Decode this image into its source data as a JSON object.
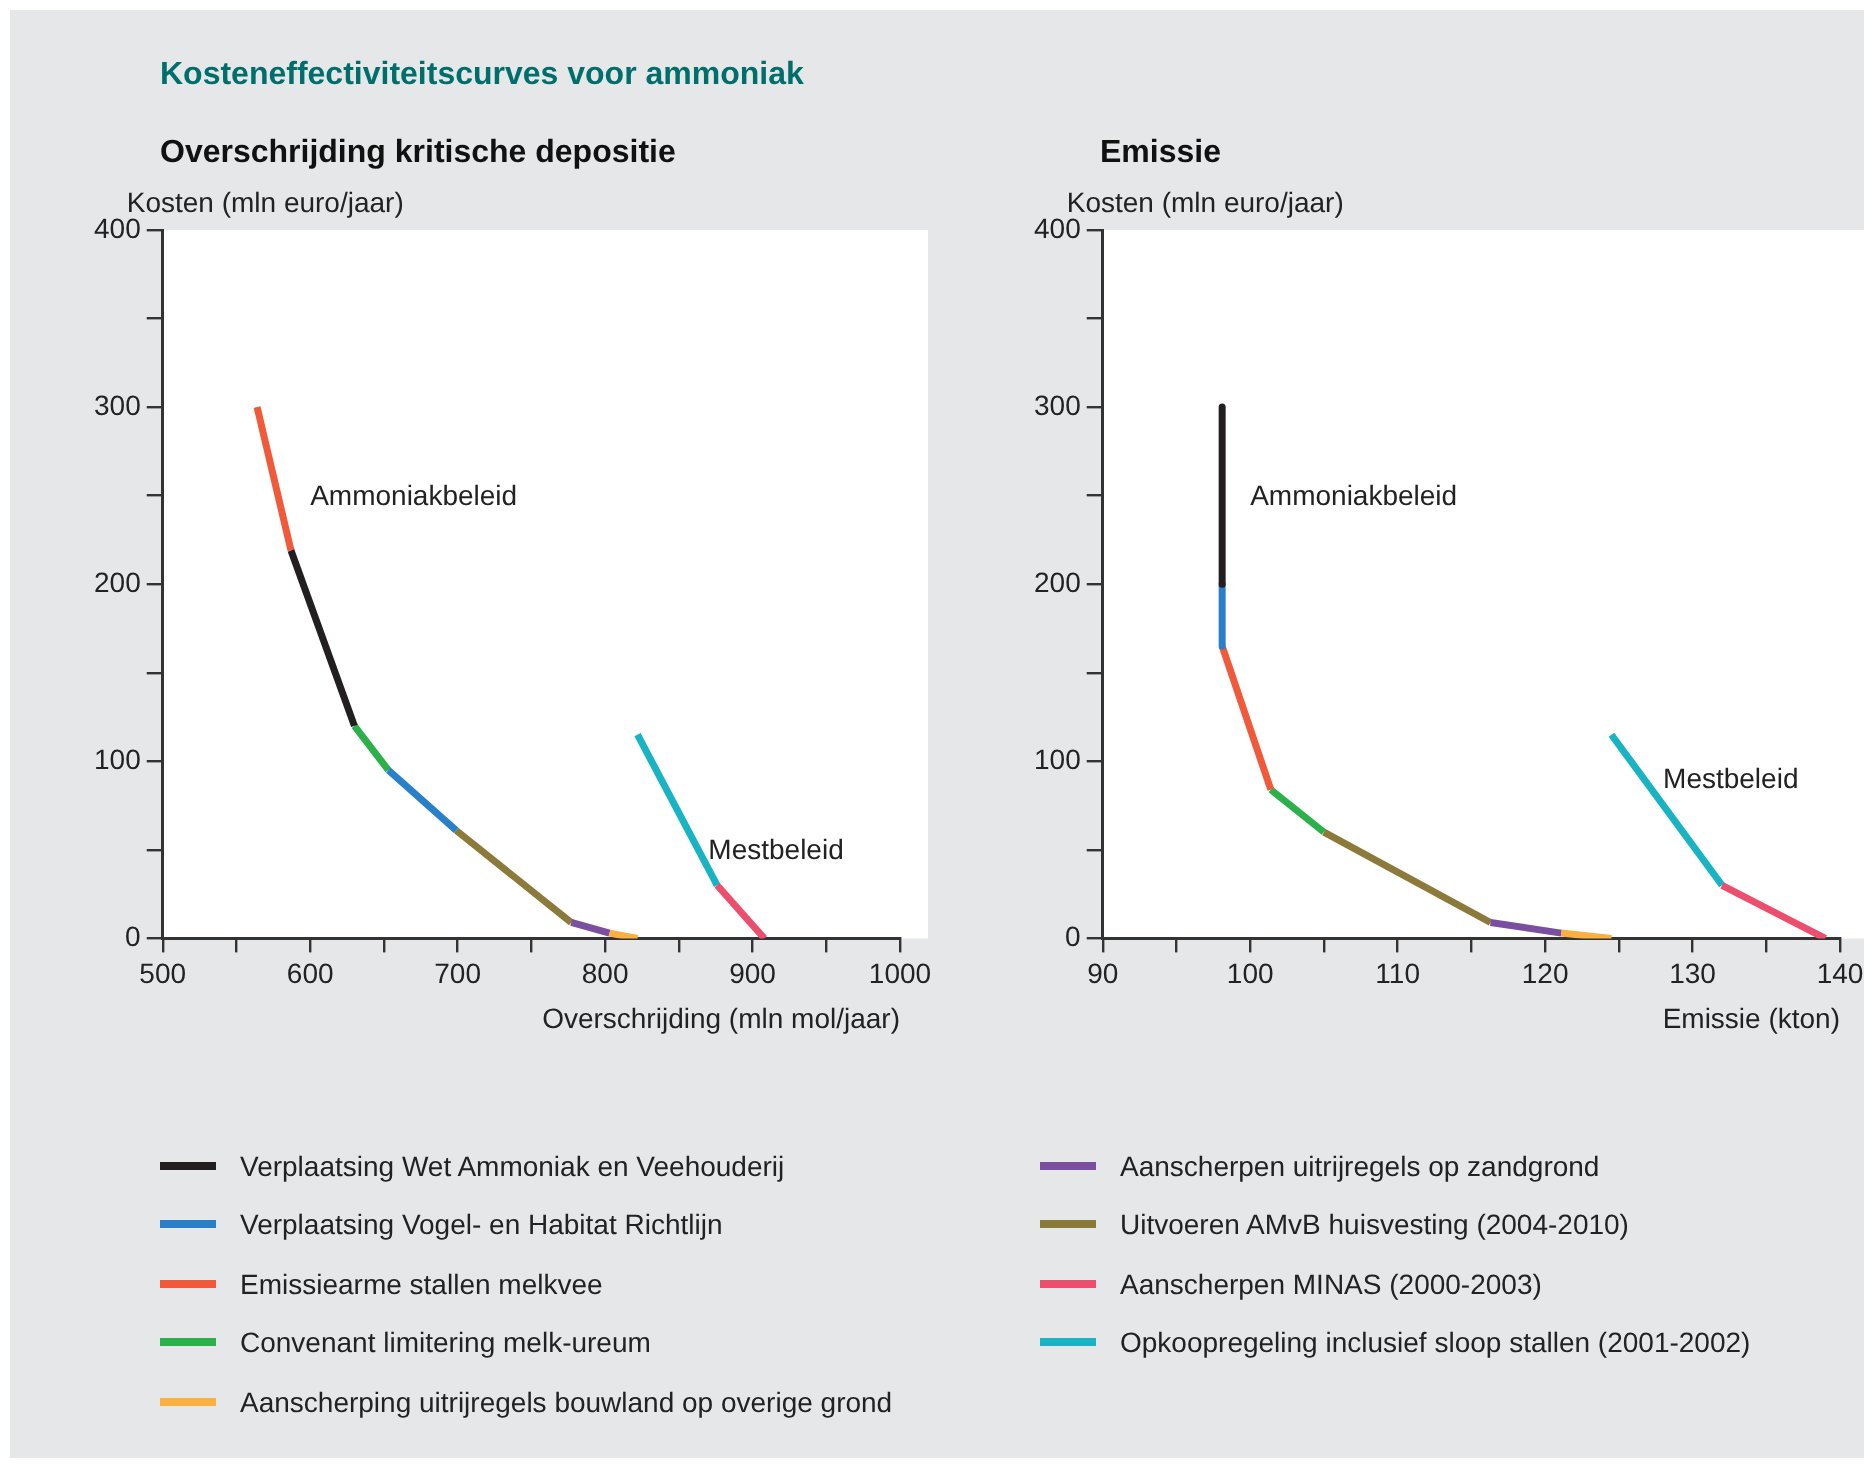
{
  "chart_data": [
    {
      "type": "line",
      "title": "Kosteneffectiviteitscurves voor ammoniak",
      "subtitle": "Overschrijding kritische depositie",
      "xlabel": "Overschrijding (mln mol/jaar)",
      "ylabel": "Kosten (mln euro/jaar)",
      "xlim": [
        500,
        1000
      ],
      "xticks": [
        500,
        {
          "value": 550,
          "label": null
        },
        600,
        {
          "value": 650,
          "label": null
        },
        700,
        {
          "value": 750,
          "label": null
        },
        800,
        {
          "value": 850,
          "label": null
        },
        900,
        {
          "value": 950,
          "label": null
        },
        1000
      ],
      "ylim": [
        0,
        400
      ],
      "yticks": [
        0,
        {
          "value": 50,
          "label": null
        },
        100,
        {
          "value": 150,
          "label": null
        },
        200,
        {
          "value": 250,
          "label": null
        },
        300,
        {
          "value": 350,
          "label": null
        },
        400
      ],
      "legend": "bottom",
      "marker": "none",
      "annotations": [
        "Ammoniakbeleid",
        "Mestbeleid"
      ],
      "series": [
        {
          "name": "Verplaatsing Wet Ammoniak en Veehouderij",
          "color": "#231f20",
          "x": [
            587,
            630
          ],
          "values": [
            219,
            120
          ]
        },
        {
          "name": "Verplaatsing Vogel- en Habitat Richtlijn",
          "color": "#2a7fc9",
          "x": [
            653,
            699
          ],
          "values": [
            95,
            61
          ]
        },
        {
          "name": "Emissiearme stallen melkvee",
          "color": "#f05a3a",
          "x": [
            564,
            587
          ],
          "values": [
            300,
            219
          ]
        },
        {
          "name": "Convenant limitering melk-ureum",
          "color": "#2bb04a",
          "x": [
            630,
            653
          ],
          "values": [
            120,
            95
          ]
        },
        {
          "name": "Aanscherping uitrijregels bouwland op overige grond",
          "color": "#f9b040",
          "x": [
            803,
            822
          ],
          "values": [
            3,
            0
          ]
        },
        {
          "name": "Aanscherpen uitrijregels op zandgrond",
          "color": "#7a4fa0",
          "x": [
            777,
            803
          ],
          "values": [
            9,
            3
          ]
        },
        {
          "name": "Uitvoeren AMvB huisvesting (2004-2010)",
          "color": "#8c7a3a",
          "x": [
            699,
            777
          ],
          "values": [
            61,
            9
          ]
        },
        {
          "name": "Aanscherpen MINAS (2000-2003)",
          "color": "#ec4f6e",
          "x": [
            876,
            908
          ],
          "values": [
            30,
            0
          ]
        },
        {
          "name": "Opkoopregeling inclusief sloop stallen (2001-2002)",
          "color": "#1ab3c3",
          "x": [
            822,
            876
          ],
          "values": [
            115,
            30
          ]
        }
      ]
    },
    {
      "type": "line",
      "title": "Emissie",
      "xlabel": "Emissie (kton)",
      "ylabel": "Kosten (mln euro/jaar)",
      "xlim": [
        90,
        140
      ],
      "xticks": [
        90,
        {
          "value": 95,
          "label": null
        },
        100,
        {
          "value": 105,
          "label": null
        },
        110,
        {
          "value": 115,
          "label": null
        },
        120,
        {
          "value": 125,
          "label": null
        },
        130,
        {
          "value": 135,
          "label": null
        },
        140
      ],
      "ylim": [
        0,
        400
      ],
      "yticks": [
        0,
        {
          "value": 50,
          "label": null
        },
        100,
        {
          "value": 150,
          "label": null
        },
        200,
        {
          "value": 250,
          "label": null
        },
        300,
        {
          "value": 350,
          "label": null
        },
        400
      ],
      "marker": "none",
      "annotations": [
        "Ammoniakbeleid",
        "Mestbeleid"
      ],
      "series": [
        {
          "color": "#231f20",
          "x": [
            98.1,
            98.1
          ],
          "values": [
            300,
            200
          ]
        },
        {
          "color": "#2a7fc9",
          "x": [
            98.1,
            98.1
          ],
          "values": [
            200,
            165
          ]
        },
        {
          "color": "#f05a3a",
          "x": [
            98.1,
            101.4
          ],
          "values": [
            165,
            84
          ]
        },
        {
          "color": "#2bb04a",
          "x": [
            101.4,
            105.0
          ],
          "values": [
            84,
            60
          ]
        },
        {
          "color": "#f9b040",
          "x": [
            121.1,
            124.5
          ],
          "values": [
            3,
            0
          ]
        },
        {
          "color": "#7a4fa0",
          "x": [
            116.3,
            121.1
          ],
          "values": [
            9,
            3
          ]
        },
        {
          "color": "#8c7a3a",
          "x": [
            105.0,
            116.3
          ],
          "values": [
            60,
            9
          ]
        },
        {
          "color": "#ec4f6e",
          "x": [
            132.0,
            139.0
          ],
          "values": [
            30,
            0
          ]
        },
        {
          "color": "#1ab3c3",
          "x": [
            124.5,
            132.0
          ],
          "values": [
            115,
            30
          ]
        }
      ]
    }
  ]
}
